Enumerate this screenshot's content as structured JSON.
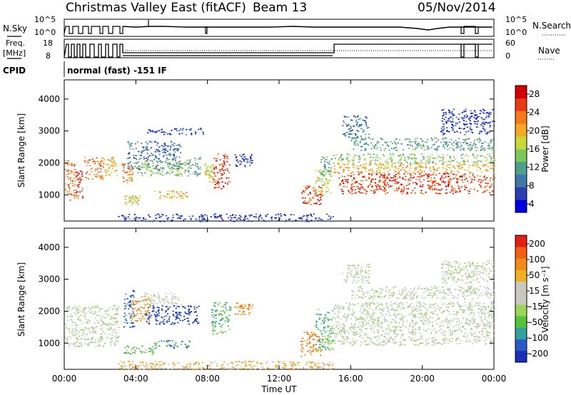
{
  "header": {
    "title": "Christmas Valley East (fitACF)",
    "beam": "Beam 13",
    "date": "05/Nov/2014"
  },
  "status_panels": {
    "nsky_label": "N.Sky",
    "nsearch_label": "N.Search",
    "nsky_ticks": [
      "10^5",
      "10^0"
    ],
    "nsearch_ticks": [
      "10^5",
      "10^0"
    ],
    "freq_label_line1": "Freq.",
    "freq_label_line2": "[MHz]",
    "freq_ticks": [
      "18",
      "8"
    ],
    "nave_label": "Nave",
    "nave_ticks": [
      "60",
      "0"
    ],
    "cpid_label": "CPID",
    "cpid_text": "normal (fast) -151 IF"
  },
  "chart_data": [
    {
      "type": "heatmap",
      "name": "power-panel",
      "xlabel": "",
      "ylabel": "Slant Range [km]",
      "xlim_hours": [
        0,
        24
      ],
      "ylim": [
        180,
        4600
      ],
      "y_ticks": [
        1000,
        2000,
        3000,
        4000
      ],
      "colorbar_label": "Power [dB]",
      "colorbar_ticks": [
        "28",
        "24",
        "20",
        "16",
        "12",
        "8",
        "4"
      ],
      "colorbar_colors": [
        "#0000e0",
        "#2a3fb0",
        "#3f78a8",
        "#4fa08a",
        "#7cc75a",
        "#c6d83a",
        "#f5a623",
        "#f47a1a",
        "#e83a14",
        "#d40000"
      ],
      "regions": [
        {
          "t0": 0.0,
          "t1": 0.6,
          "r0": 850,
          "r1": 2100,
          "level": 7
        },
        {
          "t0": 0.6,
          "t1": 1.0,
          "r0": 900,
          "r1": 1800,
          "level": 8
        },
        {
          "t0": 1.1,
          "t1": 2.2,
          "r0": 1500,
          "r1": 2200,
          "level": 7
        },
        {
          "t0": 2.2,
          "t1": 2.9,
          "r0": 1600,
          "r1": 2200,
          "level": 6
        },
        {
          "t0": 3.2,
          "t1": 3.8,
          "r0": 1400,
          "r1": 2000,
          "level": 7
        },
        {
          "t0": 3.5,
          "t1": 6.5,
          "r0": 1800,
          "r1": 2700,
          "level": 2
        },
        {
          "t0": 4.0,
          "t1": 6.8,
          "r0": 1600,
          "r1": 2100,
          "level": 4
        },
        {
          "t0": 3.3,
          "t1": 4.2,
          "r0": 700,
          "r1": 1000,
          "level": 5
        },
        {
          "t0": 5.0,
          "t1": 7.0,
          "r0": 900,
          "r1": 1150,
          "level": 6
        },
        {
          "t0": 6.8,
          "t1": 7.6,
          "r0": 1600,
          "r1": 2200,
          "level": 3
        },
        {
          "t0": 8.3,
          "t1": 9.2,
          "r0": 1200,
          "r1": 2300,
          "level": 8
        },
        {
          "t0": 7.8,
          "t1": 8.3,
          "r0": 1400,
          "r1": 2000,
          "level": 5
        },
        {
          "t0": 4.5,
          "t1": 7.8,
          "r0": 2900,
          "r1": 3100,
          "level": 1
        },
        {
          "t0": 9.5,
          "t1": 10.5,
          "r0": 1900,
          "r1": 2300,
          "level": 1
        },
        {
          "t0": 3.0,
          "t1": 15.0,
          "r0": 180,
          "r1": 420,
          "level": 1
        },
        {
          "t0": 13.2,
          "t1": 14.4,
          "r0": 700,
          "r1": 1300,
          "level": 8
        },
        {
          "t0": 14.0,
          "t1": 14.9,
          "r0": 1000,
          "r1": 1800,
          "level": 5
        },
        {
          "t0": 14.3,
          "t1": 14.9,
          "r0": 1600,
          "r1": 2200,
          "level": 3
        },
        {
          "t0": 15.0,
          "t1": 24.0,
          "r0": 2000,
          "r1": 2300,
          "level": 4
        },
        {
          "t0": 15.0,
          "t1": 24.0,
          "r0": 1700,
          "r1": 2000,
          "level": 6
        },
        {
          "t0": 15.3,
          "t1": 24.0,
          "r0": 1050,
          "r1": 1700,
          "level": 8
        },
        {
          "t0": 16.0,
          "t1": 24.0,
          "r0": 2400,
          "r1": 2800,
          "level": 3
        },
        {
          "t0": 15.5,
          "t1": 17.0,
          "r0": 2800,
          "r1": 3500,
          "level": 2
        },
        {
          "t0": 21.0,
          "t1": 24.0,
          "r0": 2900,
          "r1": 3700,
          "level": 1
        }
      ]
    },
    {
      "type": "heatmap",
      "name": "velocity-panel",
      "xlabel": "Time UT",
      "ylabel": "Slant Range [km]",
      "xlim_hours": [
        0,
        24
      ],
      "ylim": [
        180,
        4600
      ],
      "x_ticks": [
        "00:00",
        "04:00",
        "08:00",
        "12:00",
        "16:00",
        "20:00",
        "00:00"
      ],
      "y_ticks": [
        1000,
        2000,
        3000,
        4000
      ],
      "colorbar_label": "Velocity [m s⁻¹]",
      "colorbar_ticks": [
        "200",
        "100",
        "50",
        "15",
        "-15",
        "-50",
        "-100",
        "-200"
      ],
      "colorbar_colors": [
        "#1a2fb8",
        "#2a5ac8",
        "#34a0a0",
        "#56c23a",
        "#9ad55a",
        "#c8c8c0",
        "#c8c8c0",
        "#f0b020",
        "#f08a18",
        "#f06010",
        "#e02010"
      ],
      "regions": [
        {
          "t0": 0.0,
          "t1": 3.0,
          "r0": 900,
          "r1": 2200,
          "level": 5
        },
        {
          "t0": 3.3,
          "t1": 3.9,
          "r0": 1500,
          "r1": 2700,
          "level": 1
        },
        {
          "t0": 3.7,
          "t1": 4.8,
          "r0": 1700,
          "r1": 2400,
          "level": 8
        },
        {
          "t0": 4.5,
          "t1": 7.5,
          "r0": 1600,
          "r1": 2200,
          "level": 0
        },
        {
          "t0": 4.2,
          "t1": 6.5,
          "r0": 2200,
          "r1": 2600,
          "level": 5
        },
        {
          "t0": 3.3,
          "t1": 5.0,
          "r0": 650,
          "r1": 950,
          "level": 3
        },
        {
          "t0": 5.0,
          "t1": 7.0,
          "r0": 850,
          "r1": 1100,
          "level": 2
        },
        {
          "t0": 8.2,
          "t1": 9.3,
          "r0": 1300,
          "r1": 2300,
          "level": 3
        },
        {
          "t0": 9.5,
          "t1": 10.5,
          "r0": 1900,
          "r1": 2300,
          "level": 8
        },
        {
          "t0": 3.0,
          "t1": 15.0,
          "r0": 180,
          "r1": 450,
          "level": 7
        },
        {
          "t0": 13.2,
          "t1": 14.3,
          "r0": 600,
          "r1": 1400,
          "level": 8
        },
        {
          "t0": 14.0,
          "t1": 15.0,
          "r0": 800,
          "r1": 2100,
          "level": 3
        },
        {
          "t0": 15.0,
          "t1": 24.0,
          "r0": 950,
          "r1": 2300,
          "level": 5
        },
        {
          "t0": 16.0,
          "t1": 24.0,
          "r0": 2400,
          "r1": 2800,
          "level": 5
        },
        {
          "t0": 15.5,
          "t1": 17.0,
          "r0": 2900,
          "r1": 3500,
          "level": 5
        },
        {
          "t0": 21.0,
          "t1": 24.0,
          "r0": 2900,
          "r1": 3600,
          "level": 5
        }
      ]
    }
  ]
}
